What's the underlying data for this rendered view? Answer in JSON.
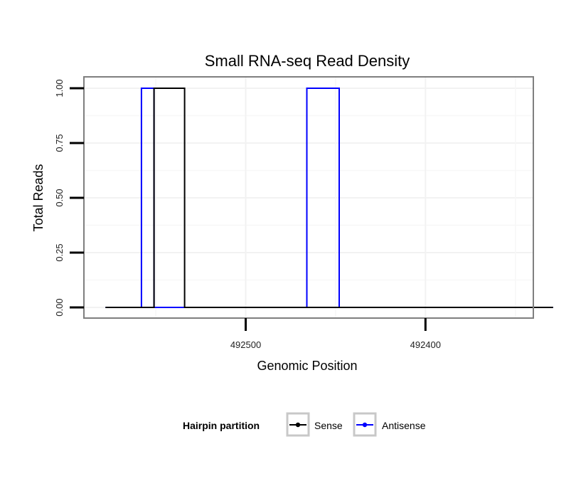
{
  "chart_data": {
    "type": "line",
    "title": "Small RNA-seq Read Density",
    "xlabel": "Genomic Position",
    "ylabel": "Total Reads",
    "x_reversed": true,
    "xlim": [
      492590,
      492340
    ],
    "ylim": [
      0,
      1
    ],
    "x_ticks": [
      492500,
      492400
    ],
    "x_tick_labels": [
      "492500",
      "492400"
    ],
    "y_ticks": [
      0,
      0.25,
      0.5,
      0.75,
      1
    ],
    "y_tick_labels": [
      "0.00",
      "0.25",
      "0.50",
      "0.75",
      "1.00"
    ],
    "legend": {
      "title": "Hairpin partition",
      "position": "bottom"
    },
    "series": [
      {
        "name": "Sense",
        "color": "#000000",
        "x": [
          492578,
          492551,
          492551,
          492534,
          492534,
          492329
        ],
        "y": [
          0,
          0,
          1,
          1,
          0,
          0
        ]
      },
      {
        "name": "Antisense",
        "color": "#0000ff",
        "x": [
          492578,
          492558,
          492558,
          492551,
          492551,
          492534,
          492534,
          492466,
          492466,
          492448,
          492448,
          492329
        ],
        "y": [
          0,
          0,
          1,
          1,
          0,
          0,
          0,
          0,
          1,
          1,
          0,
          0
        ]
      }
    ]
  }
}
